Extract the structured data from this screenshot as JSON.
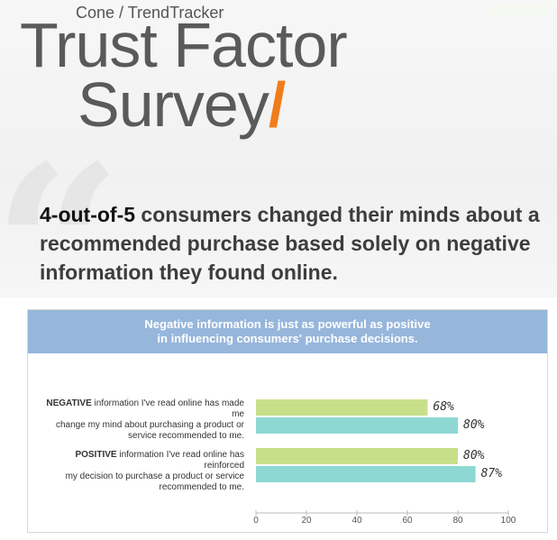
{
  "header": {
    "source": "Cone / TrendTracker",
    "title_line1": "Trust Factor",
    "title_line2": "Survey",
    "title_slash": "/"
  },
  "quote": {
    "highlight": "4-out-of-5",
    "text": " consumers changed their minds about a recommended purchase based solely on negative information they found online."
  },
  "colors": {
    "accent_orange": "#f07d1a",
    "header_blue": "#97b6db",
    "bar_green": "#c8df8a",
    "bar_teal": "#8ed8d3"
  },
  "chart_data": {
    "type": "bar",
    "orientation": "horizontal",
    "title": "Negative information is just as powerful as positive in influencing consumers' purchase decisions.",
    "title_line1": "Negative information is just as powerful as positive",
    "title_line2": "in influencing consumers' purchase decisions.",
    "categories": [
      {
        "bold": "NEGATIVE",
        "line1": " information I've read online has made me",
        "line2": "change my mind about purchasing a product or",
        "line3": "service recommended to me."
      },
      {
        "bold": "POSITIVE",
        "line1": " information I've read online has reinforced",
        "line2": "my decision to purchase a product or service",
        "line3": "recommended to me."
      }
    ],
    "series": [
      {
        "color": "#c8df8a",
        "values": [
          68,
          80
        ]
      },
      {
        "color": "#8ed8d3",
        "values": [
          80,
          87
        ]
      }
    ],
    "value_labels": [
      [
        "68%",
        "80%"
      ],
      [
        "80%",
        "87%"
      ]
    ],
    "xlim": [
      0,
      100
    ],
    "ticks": [
      0,
      20,
      40,
      60,
      80,
      100
    ],
    "xlabel": "",
    "ylabel": "",
    "grid": false,
    "legend": "none"
  }
}
